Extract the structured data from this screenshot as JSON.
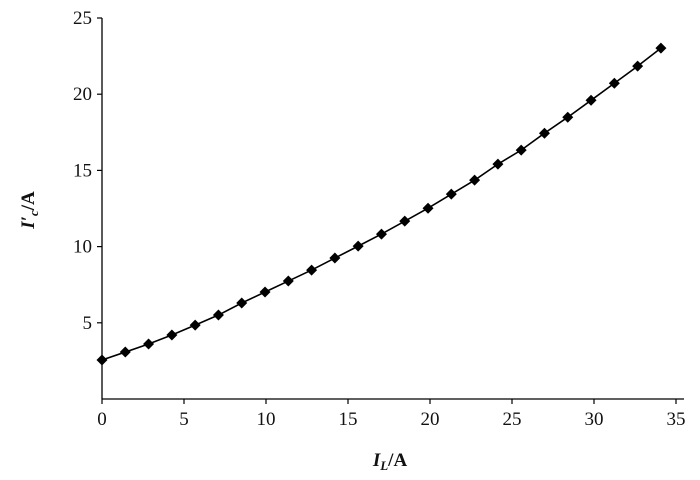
{
  "chart_data": {
    "type": "line",
    "x": [
      0,
      1.42,
      2.84,
      4.26,
      5.68,
      7.1,
      8.52,
      9.94,
      11.36,
      12.78,
      14.2,
      15.62,
      17.04,
      18.46,
      19.88,
      21.3,
      22.72,
      24.14,
      25.56,
      26.98,
      28.4,
      29.82,
      31.24,
      32.66,
      34.08
    ],
    "series": [
      {
        "color": "#000000",
        "values": [
          2.56,
          3.08,
          3.61,
          4.2,
          4.85,
          5.51,
          6.3,
          7.02,
          7.74,
          8.46,
          9.25,
          10.03,
          10.82,
          11.67,
          12.52,
          13.44,
          14.36,
          15.41,
          16.33,
          17.44,
          18.49,
          19.6,
          20.72,
          21.84,
          23.02
        ]
      }
    ],
    "xlim": [
      0,
      35
    ],
    "xticks": [
      0,
      5,
      10,
      15,
      20,
      25,
      30,
      35
    ],
    "ylim": [
      0,
      25
    ],
    "yticks": [
      5,
      10,
      15,
      20,
      25
    ],
    "xlabel": {
      "symbol": "I",
      "subscript": "L",
      "unit": "/A"
    },
    "ylabel": {
      "symbol": "I′",
      "subscript": "c",
      "unit": "/A"
    },
    "grid": false
  }
}
